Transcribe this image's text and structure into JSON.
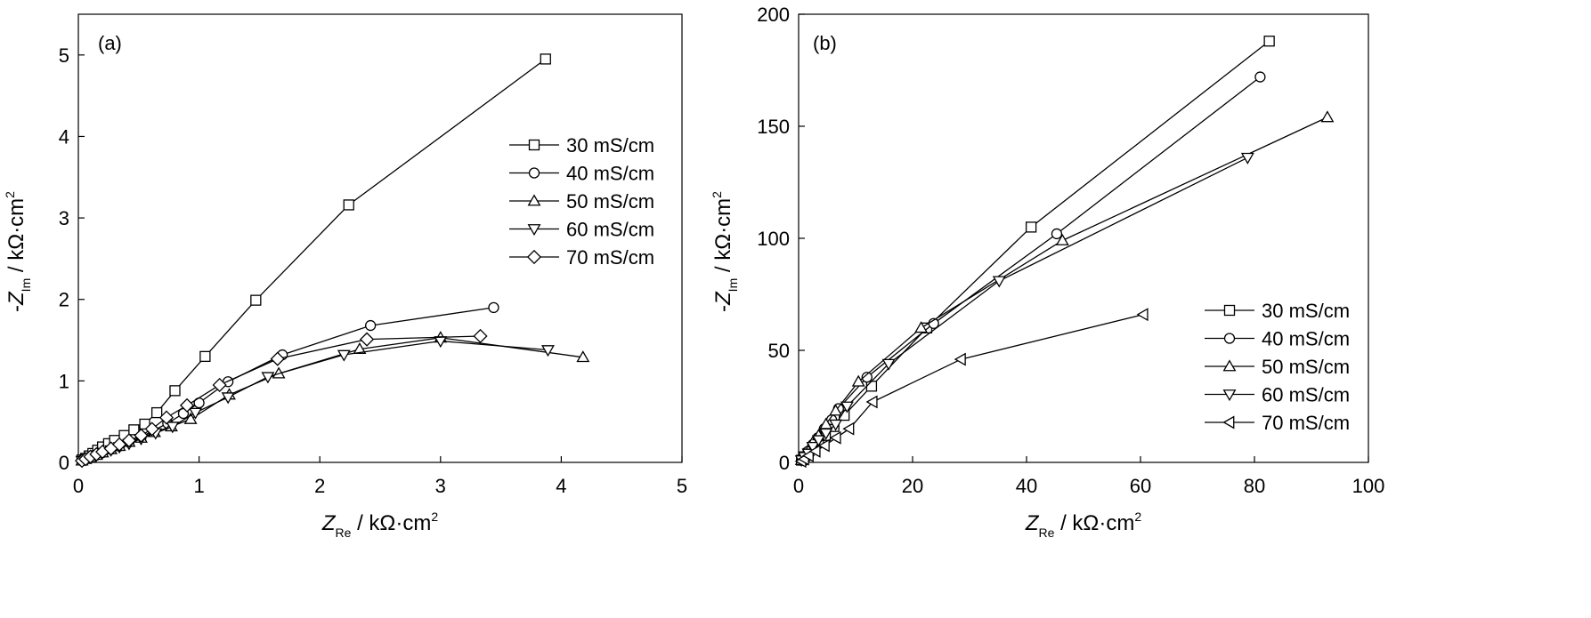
{
  "chart_data": [
    {
      "type": "scatter",
      "panel_label": "(a)",
      "xlabel": {
        "symbol": "Z",
        "subscript": "Re",
        "unit_text": " / kΩ·cm",
        "superscript": "2"
      },
      "ylabel": {
        "prefix": "-",
        "symbol": "Z",
        "subscript": "Im",
        "unit_text": " / kΩ·cm",
        "superscript": "2"
      },
      "xlim": [
        0,
        5
      ],
      "ylim": [
        0,
        5.5
      ],
      "xticks": [
        0,
        1,
        2,
        3,
        4,
        5
      ],
      "yticks": [
        0,
        1,
        2,
        3,
        4,
        5
      ],
      "xtick_labels": [
        "0",
        "1",
        "2",
        "3",
        "4",
        "5"
      ],
      "ytick_labels": [
        "0",
        "1",
        "2",
        "3",
        "4",
        "5"
      ],
      "grid": false,
      "legend_position": "right-middle",
      "series": [
        {
          "name": "30 mS/cm",
          "marker": "square",
          "x": [
            0.03,
            0.06,
            0.09,
            0.12,
            0.16,
            0.2,
            0.25,
            0.3,
            0.38,
            0.46,
            0.55,
            0.65,
            0.8,
            1.05,
            1.47,
            2.24,
            3.87
          ],
          "y": [
            0.03,
            0.05,
            0.08,
            0.11,
            0.15,
            0.19,
            0.23,
            0.27,
            0.33,
            0.4,
            0.47,
            0.61,
            0.88,
            1.3,
            1.99,
            3.16,
            4.95
          ]
        },
        {
          "name": "40 mS/cm",
          "marker": "circle",
          "x": [
            0.03,
            0.06,
            0.1,
            0.15,
            0.2,
            0.27,
            0.34,
            0.42,
            0.52,
            0.62,
            0.74,
            0.87,
            1.0,
            1.24,
            1.69,
            2.42,
            3.44
          ],
          "y": [
            0.02,
            0.04,
            0.06,
            0.09,
            0.12,
            0.16,
            0.2,
            0.25,
            0.31,
            0.39,
            0.48,
            0.6,
            0.73,
            0.99,
            1.32,
            1.68,
            1.9
          ]
        },
        {
          "name": "50 mS/cm",
          "marker": "triangle-up",
          "x": [
            0.03,
            0.06,
            0.1,
            0.15,
            0.2,
            0.27,
            0.34,
            0.42,
            0.52,
            0.63,
            0.77,
            0.93,
            1.25,
            1.66,
            2.33,
            3.0,
            4.18
          ],
          "y": [
            0.02,
            0.04,
            0.06,
            0.09,
            0.12,
            0.16,
            0.2,
            0.25,
            0.3,
            0.37,
            0.44,
            0.53,
            0.83,
            1.09,
            1.39,
            1.53,
            1.29
          ]
        },
        {
          "name": "60 mS/cm",
          "marker": "triangle-down",
          "x": [
            0.03,
            0.06,
            0.1,
            0.15,
            0.2,
            0.27,
            0.34,
            0.42,
            0.52,
            0.64,
            0.78,
            0.97,
            1.24,
            1.57,
            2.2,
            3.0,
            3.89
          ],
          "y": [
            0.02,
            0.04,
            0.06,
            0.09,
            0.12,
            0.15,
            0.19,
            0.23,
            0.29,
            0.36,
            0.44,
            0.61,
            0.8,
            1.05,
            1.32,
            1.49,
            1.38
          ]
        },
        {
          "name": "70 mS/cm",
          "marker": "diamond",
          "x": [
            0.03,
            0.06,
            0.1,
            0.15,
            0.2,
            0.27,
            0.34,
            0.42,
            0.52,
            0.61,
            0.73,
            0.9,
            1.17,
            1.65,
            2.39,
            3.33
          ],
          "y": [
            0.02,
            0.04,
            0.07,
            0.1,
            0.13,
            0.17,
            0.22,
            0.27,
            0.33,
            0.41,
            0.55,
            0.7,
            0.95,
            1.27,
            1.51,
            1.55
          ]
        }
      ]
    },
    {
      "type": "scatter",
      "panel_label": "(b)",
      "xlabel": {
        "symbol": "Z",
        "subscript": "Re",
        "unit_text": " / kΩ·cm",
        "superscript": "2"
      },
      "ylabel": {
        "prefix": "-",
        "symbol": "Z",
        "subscript": "Im",
        "unit_text": " / kΩ·cm",
        "superscript": "2"
      },
      "xlim": [
        0,
        100
      ],
      "ylim": [
        0,
        200
      ],
      "xticks": [
        0,
        20,
        40,
        60,
        80,
        100
      ],
      "yticks": [
        0,
        50,
        100,
        150,
        200
      ],
      "xtick_labels": [
        "0",
        "20",
        "40",
        "60",
        "80",
        "100"
      ],
      "ytick_labels": [
        "0",
        "50",
        "100",
        "150",
        "200"
      ],
      "grid": false,
      "legend_position": "bottom-right",
      "series": [
        {
          "name": "30 mS/cm",
          "marker": "square",
          "x": [
            0.5,
            1,
            1.7,
            2.5,
            3.5,
            4.7,
            6.2,
            8.0,
            12.8,
            22.5,
            40.8,
            82.6
          ],
          "y": [
            1,
            2.5,
            4,
            6,
            9,
            12,
            16,
            21,
            34,
            60,
            105,
            188
          ]
        },
        {
          "name": "40 mS/cm",
          "marker": "circle",
          "x": [
            0.5,
            1,
            1.7,
            2.5,
            3.4,
            4.5,
            5.8,
            7.0,
            12.0,
            23.7,
            45.3,
            81.0
          ],
          "y": [
            1,
            2.5,
            5,
            8,
            11,
            15,
            19,
            24,
            38,
            62,
            102,
            172
          ]
        },
        {
          "name": "50 mS/cm",
          "marker": "triangle-up",
          "x": [
            0.5,
            1,
            1.7,
            2.5,
            3.5,
            4.8,
            6.5,
            10.5,
            21.5,
            46.3,
            92.8
          ],
          "y": [
            1,
            3,
            5,
            9,
            12,
            17,
            23,
            36,
            60,
            99,
            154
          ]
        },
        {
          "name": "60 mS/cm",
          "marker": "triangle-down",
          "x": [
            0.5,
            1,
            1.7,
            2.5,
            3.5,
            4.8,
            6.5,
            8.5,
            15.8,
            35.2,
            78.8
          ],
          "y": [
            1,
            2.5,
            4,
            7,
            10,
            13,
            17,
            25,
            44,
            81,
            136
          ]
        },
        {
          "name": "70 mS/cm",
          "marker": "triangle-left",
          "x": [
            0.5,
            1,
            1.8,
            3,
            4.6,
            6.6,
            8.9,
            13.0,
            28.5,
            60.5
          ],
          "y": [
            0.5,
            1.5,
            3,
            5,
            7.5,
            11,
            15,
            27,
            46,
            66
          ]
        }
      ]
    }
  ]
}
